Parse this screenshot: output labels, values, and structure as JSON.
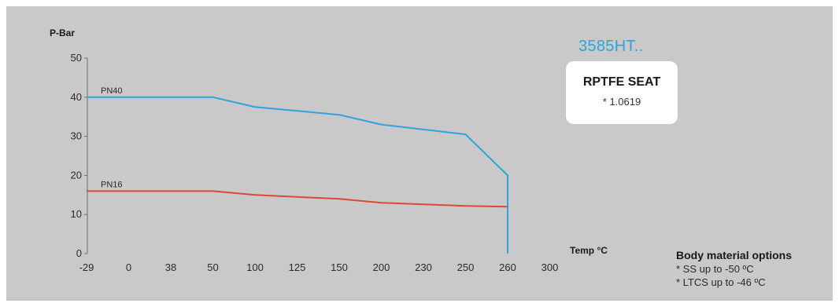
{
  "chart_data": {
    "type": "line",
    "ylabel": "P-Bar",
    "xlabel": "Temp °C",
    "yticks": [
      0,
      10,
      20,
      30,
      40,
      50
    ],
    "ylim": [
      0,
      50
    ],
    "categories": [
      "-29",
      "0",
      "38",
      "50",
      "100",
      "125",
      "150",
      "200",
      "230",
      "250",
      "260",
      "300"
    ],
    "series": [
      {
        "name": "PN40",
        "color": "#2ea3dc",
        "points": [
          [
            "-29",
            40
          ],
          [
            "50",
            40
          ],
          [
            "100",
            37.5
          ],
          [
            "150",
            35.5
          ],
          [
            "200",
            33
          ],
          [
            "250",
            30.5
          ],
          [
            "260",
            20
          ],
          [
            "260",
            0
          ]
        ]
      },
      {
        "name": "PN16",
        "color": "#e0453a",
        "points": [
          [
            "-29",
            16
          ],
          [
            "50",
            16
          ],
          [
            "100",
            15
          ],
          [
            "150",
            14
          ],
          [
            "200",
            13
          ],
          [
            "250",
            12.2
          ],
          [
            "260",
            12
          ]
        ]
      }
    ],
    "grid": false
  },
  "product": {
    "title": "3585HT..",
    "seat": "RPTFE SEAT",
    "grade": "* 1.0619"
  },
  "body_options": {
    "heading": "Body material options",
    "items": [
      "* SS up to -50 ºC",
      "* LTCS up to -46 ºC"
    ]
  }
}
